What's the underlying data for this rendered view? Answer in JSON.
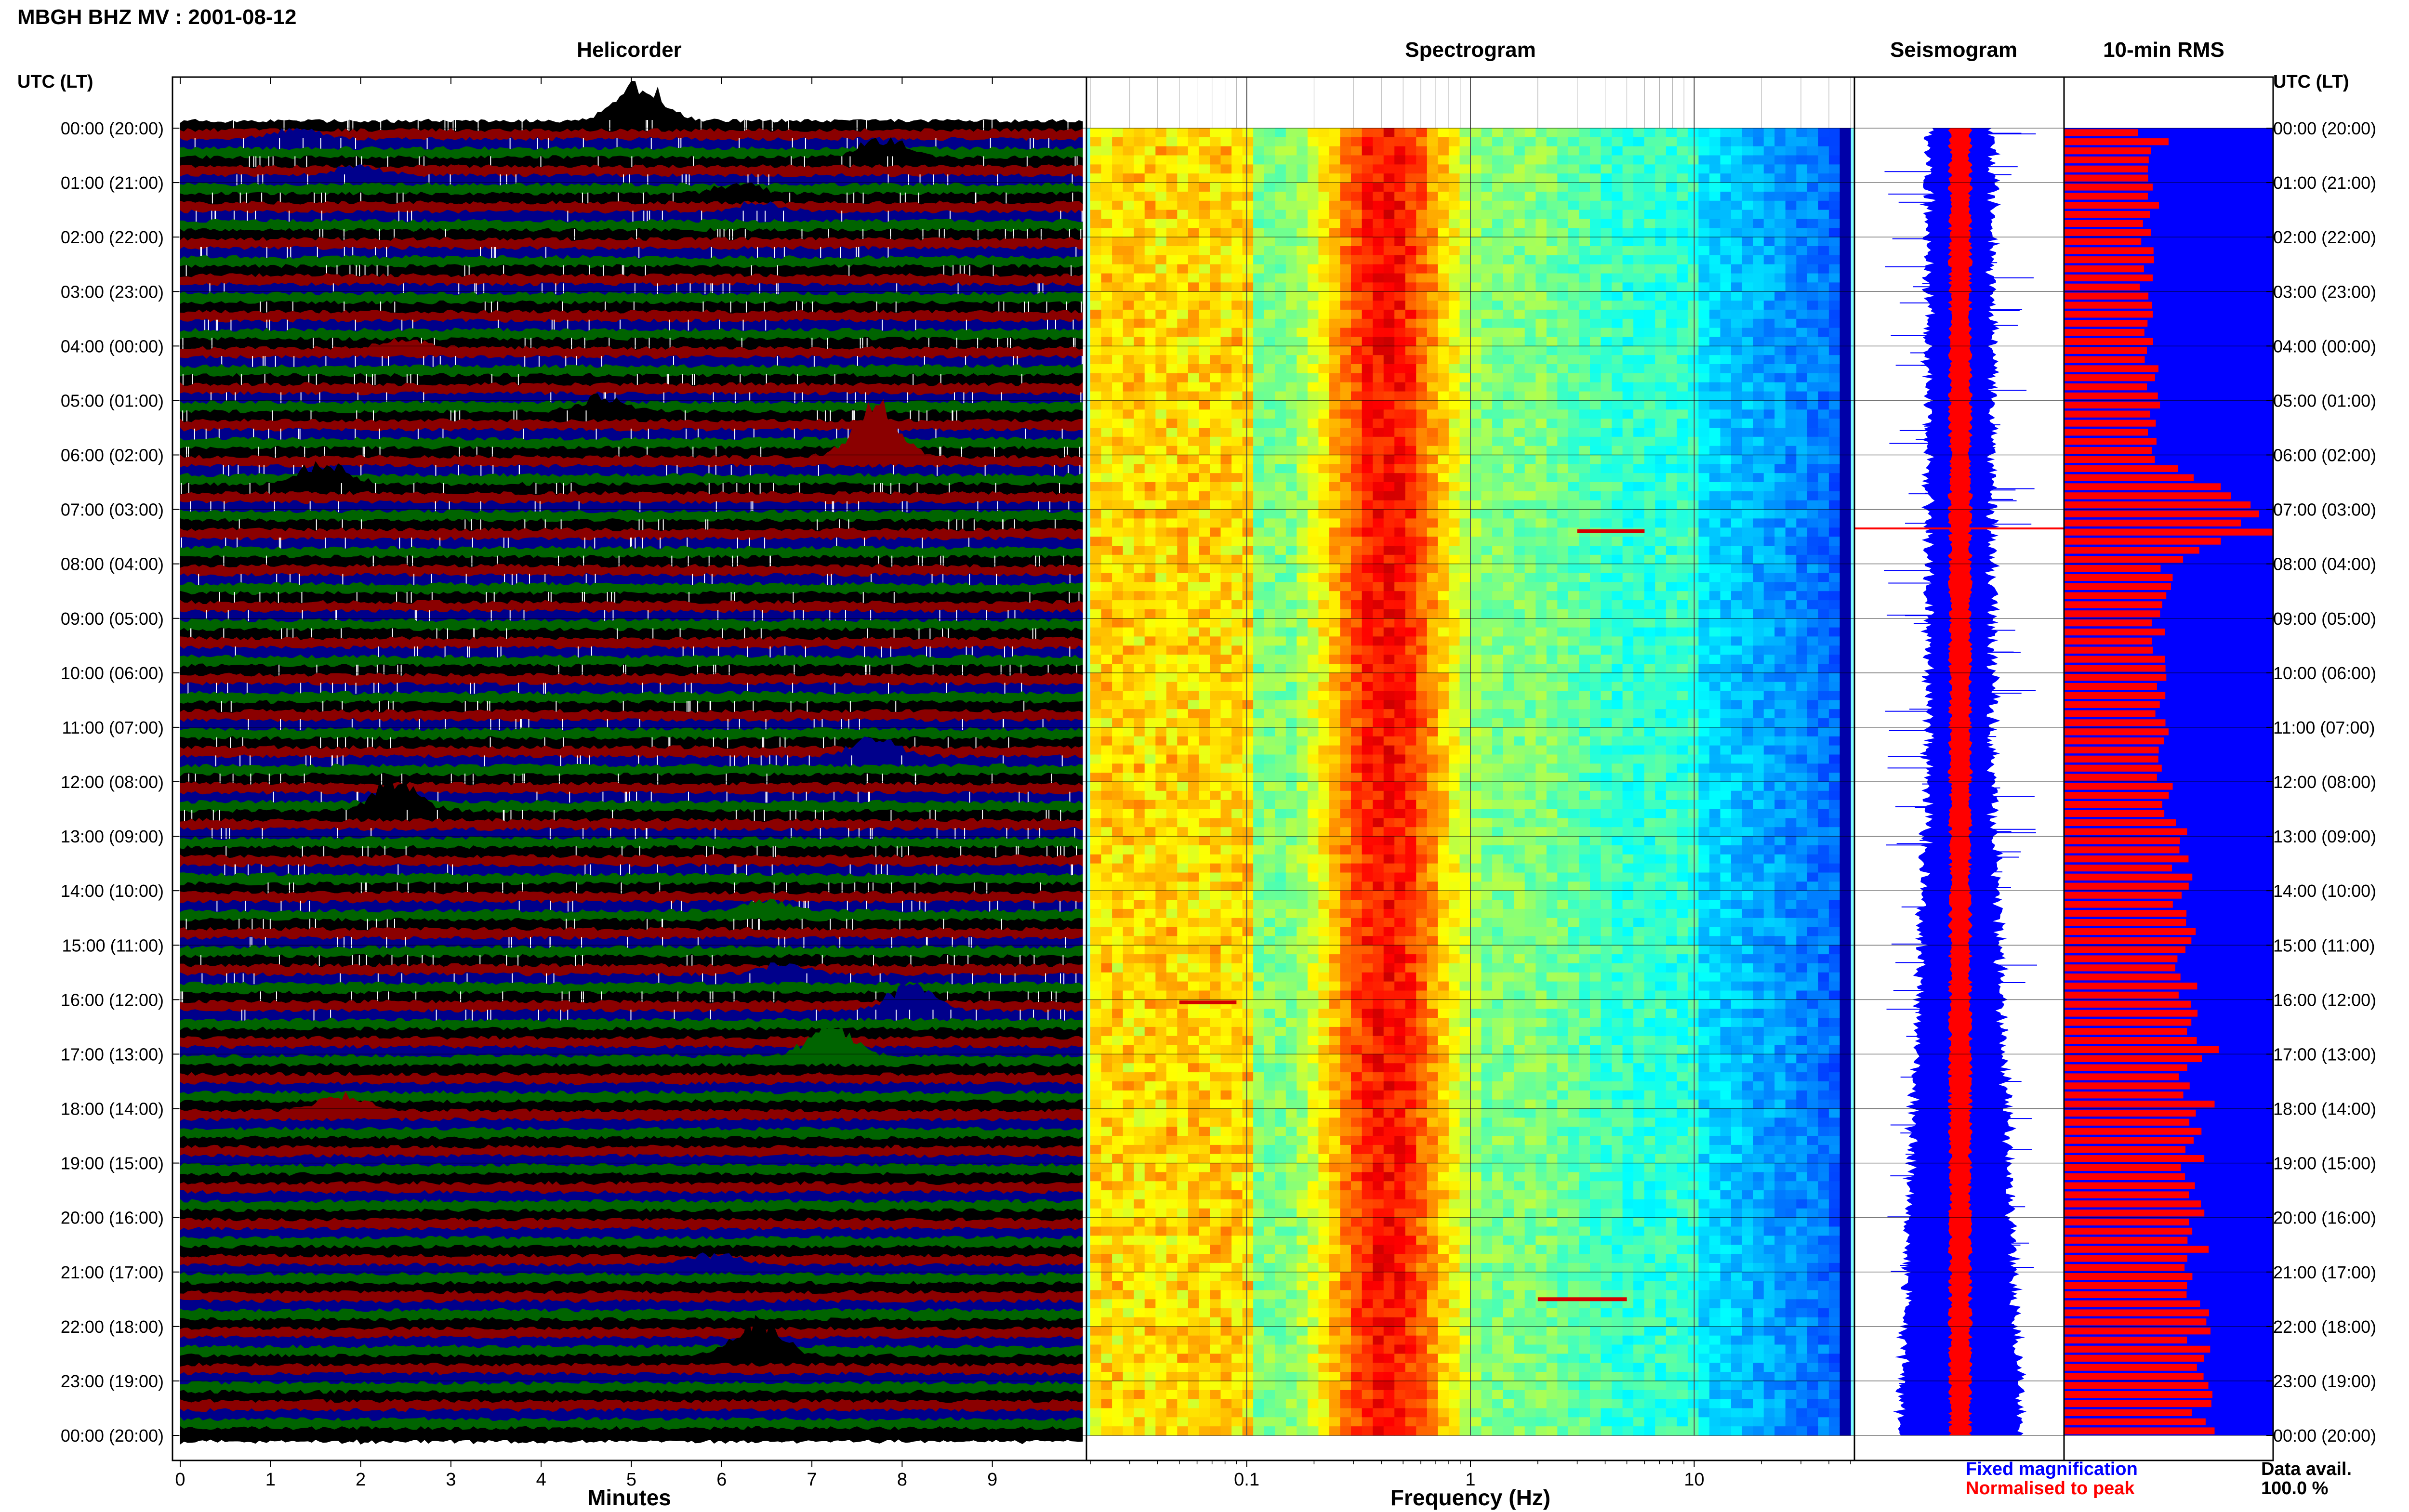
{
  "page_title": "MBGH BHZ MV : 2001-08-12",
  "time_axis_header": "UTC (LT)",
  "panels": {
    "helicorder": {
      "title": "Helicorder",
      "xlabel": "Minutes",
      "ticks": [
        "0",
        "1",
        "2",
        "3",
        "4",
        "5",
        "6",
        "7",
        "8",
        "9"
      ]
    },
    "spectrogram": {
      "title": "Spectrogram",
      "xlabel": "Frequency (Hz)",
      "ticks": [
        "0.1",
        "1",
        "10"
      ],
      "scale": "log"
    },
    "seismogram": {
      "title": "Seismogram"
    },
    "rms": {
      "title": "10-min RMS"
    }
  },
  "time_labels": [
    "00:00 (20:00)",
    "01:00 (21:00)",
    "02:00 (22:00)",
    "03:00 (23:00)",
    "04:00 (00:00)",
    "05:00 (01:00)",
    "06:00 (02:00)",
    "07:00 (03:00)",
    "08:00 (04:00)",
    "09:00 (05:00)",
    "10:00 (06:00)",
    "11:00 (07:00)",
    "12:00 (08:00)",
    "13:00 (09:00)",
    "14:00 (10:00)",
    "15:00 (11:00)",
    "16:00 (12:00)",
    "17:00 (13:00)",
    "18:00 (14:00)",
    "19:00 (15:00)",
    "20:00 (16:00)",
    "21:00 (17:00)",
    "22:00 (18:00)",
    "23:00 (19:00)",
    "00:00 (20:00)"
  ],
  "legend": {
    "fixed": "Fixed magnification",
    "normalised": "Normalised to peak",
    "fixed_color": "#0000ff",
    "normalised_color": "#ff0000"
  },
  "data_availability": {
    "label": "Data avail.",
    "value": "100.0 %"
  },
  "colors": {
    "trace_cycle": [
      "#000000",
      "#8b0000",
      "#00008b",
      "#006400"
    ],
    "spectrogram_colormap": "jet",
    "rms_background": "#0000ff",
    "rms_bar": "#ff0000"
  },
  "chart_data": [
    {
      "type": "line",
      "name": "helicorder",
      "title": "Helicorder",
      "xlabel": "Minutes",
      "xlim": [
        0,
        10
      ],
      "rows": 145,
      "row_minutes": 10,
      "events": [
        {
          "row": 0,
          "minute": 5.1,
          "amp": 2.4,
          "color": "#8b0000"
        },
        {
          "row": 2,
          "minute": 1.3,
          "amp": 0.8,
          "color": "#006400"
        },
        {
          "row": 4,
          "minute": 7.8,
          "amp": 1.2,
          "color": "#8b0000"
        },
        {
          "row": 6,
          "minute": 2.0,
          "amp": 0.6,
          "color": "#8b0000"
        },
        {
          "row": 8,
          "minute": 6.2,
          "amp": 0.6,
          "color": "#8b0000"
        },
        {
          "row": 10,
          "minute": 6.4,
          "amp": 0.6,
          "color": "#006400"
        },
        {
          "row": 25,
          "minute": 2.5,
          "amp": 0.5,
          "color": "#00008b"
        },
        {
          "row": 32,
          "minute": 4.7,
          "amp": 1.0,
          "color": "#00008b"
        },
        {
          "row": 37,
          "minute": 7.7,
          "amp": 3.2,
          "color": "#006400"
        },
        {
          "row": 40,
          "minute": 1.6,
          "amp": 1.4,
          "color": "#000000"
        },
        {
          "row": 70,
          "minute": 7.7,
          "amp": 1.2,
          "color": "#8b0000"
        },
        {
          "row": 76,
          "minute": 2.4,
          "amp": 1.8,
          "color": "#006400"
        },
        {
          "row": 87,
          "minute": 6.5,
          "amp": 0.6,
          "color": "#8b0000"
        },
        {
          "row": 94,
          "minute": 6.7,
          "amp": 0.7,
          "color": "#000000"
        },
        {
          "row": 98,
          "minute": 8.1,
          "amp": 1.6,
          "color": "#006400"
        },
        {
          "row": 103,
          "minute": 7.2,
          "amp": 1.8,
          "color": "#8b0000"
        },
        {
          "row": 109,
          "minute": 1.8,
          "amp": 0.9,
          "color": "#00008b"
        },
        {
          "row": 126,
          "minute": 5.9,
          "amp": 0.7,
          "color": "#000000"
        },
        {
          "row": 136,
          "minute": 6.4,
          "amp": 2.2,
          "color": "#8b0000"
        }
      ]
    },
    {
      "type": "heatmap",
      "name": "spectrogram",
      "title": "Spectrogram",
      "xlabel": "Frequency (Hz)",
      "xscale": "log",
      "xlim": [
        0.02,
        50
      ],
      "peak_band_hz": [
        0.2,
        0.8
      ],
      "cutoff_hz": 40,
      "highlights": [
        {
          "hour": 16.05,
          "f_lo": 0.05,
          "f_hi": 0.09
        },
        {
          "hour": 7.4,
          "f_lo": 3.0,
          "f_hi": 6.0
        },
        {
          "hour": 21.5,
          "f_lo": 2.0,
          "f_hi": 5.0
        }
      ]
    },
    {
      "type": "line",
      "name": "seismogram",
      "title": "Seismogram",
      "series": [
        {
          "name": "Fixed magnification",
          "color": "#0000ff"
        },
        {
          "name": "Normalised to peak",
          "color": "#ff0000"
        }
      ],
      "spikes_hours": [
        7.35
      ]
    },
    {
      "type": "bar",
      "name": "10-min RMS",
      "title": "10-min RMS",
      "orientation": "horizontal",
      "xlim": [
        0,
        1
      ],
      "hourly_values": [
        0.36,
        0.43,
        0.4,
        0.38,
        0.41,
        0.42,
        0.45,
        0.95,
        0.48,
        0.45,
        0.45,
        0.46,
        0.5,
        0.55,
        0.57,
        0.58,
        0.6,
        0.61,
        0.6,
        0.62,
        0.63,
        0.64,
        0.65,
        0.65,
        0.66
      ],
      "spikes": [
        {
          "hour": 7.35,
          "value": 1.0
        },
        {
          "hour": 7.5,
          "value": 0.75
        },
        {
          "hour": 0.2,
          "value": 0.5
        },
        {
          "hour": 17.9,
          "value": 0.72
        },
        {
          "hour": 16.9,
          "value": 0.74
        }
      ]
    }
  ]
}
